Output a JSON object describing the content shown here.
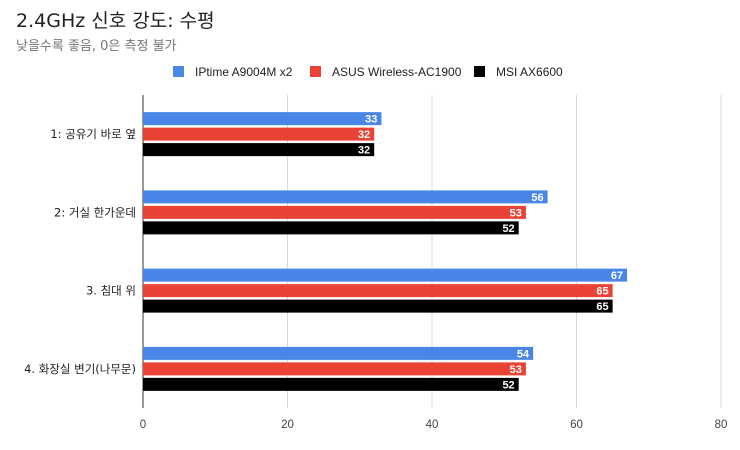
{
  "chart_data": {
    "type": "bar",
    "orientation": "horizontal",
    "title": "2.4GHz 신호 강도: 수평",
    "subtitle": "낮을수록 좋음, 0은 측정 불가",
    "categories": [
      "1: 공유기 바로 옆",
      "2: 거실 한가운데",
      "3. 침대 위",
      "4. 화장실 변기(나무문)"
    ],
    "series": [
      {
        "name": "IPtime A9004M x2",
        "color": "#4a86e8",
        "values": [
          33,
          56,
          67,
          54
        ]
      },
      {
        "name": "ASUS Wireless-AC1900",
        "color": "#ea4335",
        "values": [
          32,
          53,
          65,
          53
        ]
      },
      {
        "name": "MSI AX6600",
        "color": "#000000",
        "values": [
          32,
          52,
          65,
          52
        ]
      }
    ],
    "xlim": [
      0,
      80
    ],
    "xticks": [
      0,
      20,
      40,
      60,
      80
    ],
    "grid": true,
    "legend_position": "top-center",
    "data_labels": true
  }
}
